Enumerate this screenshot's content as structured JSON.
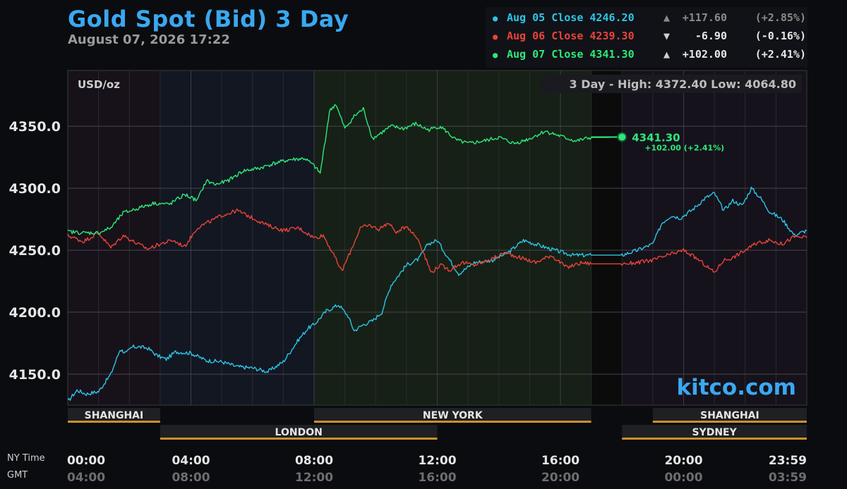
{
  "header": {
    "title": "Gold Spot (Bid) 3 Day",
    "timestamp": "August 07, 2026 17:22"
  },
  "closes": [
    {
      "label": "Aug 05 Close",
      "price": "4246.20",
      "arrow": "▲",
      "change": "+117.60",
      "pct": "(+2.85%)",
      "color": "#2ec4e6"
    },
    {
      "label": "Aug 06 Close",
      "price": "4239.30",
      "arrow": "▼",
      "change": "-6.90",
      "pct": "(-0.16%)",
      "color": "#e8433a"
    },
    {
      "label": "Aug 07 Close",
      "price": "4341.30",
      "arrow": "▲",
      "change": "+102.00",
      "pct": "(+2.41%)",
      "color": "#2ee87a"
    }
  ],
  "chart_labels": {
    "unit": "USD/oz",
    "range_text": "3 Day - High: 4372.40  Low: 4064.80",
    "watermark": "kitco.com",
    "current_price": "4341.30",
    "current_change": "+102.00 (+2.41%)",
    "ny_time_label": "NY Time",
    "gmt_label": "GMT"
  },
  "colors": {
    "aug05": "#2ec4e6",
    "aug06": "#e8433a",
    "aug07": "#2ee87a",
    "brand": "#3aa8f0",
    "session_bar": "#c8922a"
  },
  "sessions": [
    {
      "name": "SHANGHAI",
      "start": 0,
      "end": 3
    },
    {
      "name": "LONDON",
      "start": 3,
      "end": 12
    },
    {
      "name": "NEW YORK",
      "start": 8,
      "end": 17
    },
    {
      "name": "SHANGHAI",
      "start": 19,
      "end": 24
    },
    {
      "name": "SYDNEY",
      "start": 18,
      "end": 24
    }
  ],
  "chart_data": {
    "type": "line",
    "x_unit": "hours (NY time)",
    "xlim": [
      0,
      24
    ],
    "ylim": [
      4125,
      4395
    ],
    "yticks": [
      4150.0,
      4200.0,
      4250.0,
      4300.0,
      4350.0
    ],
    "ytick_labels": [
      "4150.0",
      "4200.0",
      "4250.0",
      "4300.0",
      "4350.0"
    ],
    "xtick_labels_ny": [
      "00:00",
      "04:00",
      "08:00",
      "12:00",
      "16:00",
      "20:00",
      "23:59"
    ],
    "xtick_labels_gmt": [
      "04:00",
      "08:00",
      "12:00",
      "16:00",
      "20:00",
      "00:00",
      "03:59"
    ],
    "grid": true,
    "high": 4372.4,
    "low": 4064.8,
    "series": [
      {
        "name": "Aug 05",
        "x": [
          0,
          0.3,
          0.6,
          1.0,
          1.4,
          1.7,
          1.9,
          2.1,
          2.3,
          2.6,
          2.9,
          3.2,
          3.5,
          4.0,
          4.5,
          5.0,
          5.5,
          6.0,
          6.5,
          7.0,
          7.5,
          7.8,
          8.0,
          8.4,
          8.8,
          9.1,
          9.3,
          9.6,
          9.9,
          10.2,
          10.5,
          11.0,
          11.4,
          11.7,
          12.0,
          12.3,
          12.7,
          13.2,
          13.8,
          14.3,
          14.8,
          15.3,
          15.8,
          16.4,
          17.0,
          17.5,
          18.0,
          18.5,
          19.0,
          19.3,
          19.6,
          19.9,
          20.3,
          20.7,
          21.0,
          21.3,
          21.6,
          21.9,
          22.2,
          22.5,
          22.8,
          23.2,
          23.6,
          24.0
        ],
        "values": [
          4128,
          4137,
          4134,
          4136,
          4150,
          4170,
          4167,
          4172,
          4172,
          4171,
          4165,
          4162,
          4168,
          4167,
          4161,
          4160,
          4156,
          4155,
          4152,
          4160,
          4178,
          4187,
          4190,
          4201,
          4206,
          4197,
          4185,
          4190,
          4193,
          4200,
          4222,
          4238,
          4243,
          4255,
          4258,
          4246,
          4231,
          4240,
          4242,
          4248,
          4258,
          4254,
          4250,
          4246,
          4246,
          4246,
          4246,
          4250,
          4255,
          4272,
          4278,
          4276,
          4283,
          4292,
          4296,
          4282,
          4290,
          4286,
          4300,
          4292,
          4281,
          4275,
          4262,
          4266
        ]
      },
      {
        "name": "Aug 06",
        "x": [
          0,
          0.5,
          1.0,
          1.4,
          1.8,
          2.2,
          2.6,
          3.0,
          3.4,
          3.8,
          4.2,
          4.6,
          5.0,
          5.5,
          6.0,
          6.5,
          7.0,
          7.5,
          8.0,
          8.3,
          8.6,
          8.9,
          9.2,
          9.5,
          9.8,
          10.1,
          10.4,
          10.7,
          11.0,
          11.4,
          11.8,
          12.1,
          12.4,
          12.8,
          13.2,
          13.7,
          14.2,
          14.7,
          15.2,
          15.7,
          16.2,
          16.7,
          17.0,
          17.5,
          18.0,
          18.5,
          19.0,
          19.5,
          20.0,
          20.5,
          21.0,
          21.3,
          21.6,
          22.0,
          22.4,
          22.8,
          23.2,
          23.6,
          24.0
        ],
        "values": [
          4262,
          4257,
          4264,
          4252,
          4262,
          4256,
          4251,
          4255,
          4258,
          4253,
          4268,
          4273,
          4278,
          4282,
          4276,
          4270,
          4266,
          4268,
          4260,
          4262,
          4248,
          4233,
          4250,
          4268,
          4270,
          4267,
          4272,
          4264,
          4270,
          4258,
          4232,
          4238,
          4234,
          4240,
          4238,
          4242,
          4248,
          4244,
          4240,
          4246,
          4236,
          4240,
          4239,
          4239,
          4239,
          4240,
          4242,
          4246,
          4250,
          4242,
          4232,
          4242,
          4244,
          4250,
          4256,
          4258,
          4255,
          4261,
          4260
        ]
      },
      {
        "name": "Aug 07",
        "x": [
          0,
          0.5,
          1.0,
          1.4,
          1.8,
          2.3,
          2.8,
          3.3,
          3.8,
          4.2,
          4.5,
          4.8,
          5.2,
          5.7,
          6.2,
          6.7,
          7.2,
          7.7,
          8.0,
          8.2,
          8.4,
          8.5,
          8.7,
          9.0,
          9.3,
          9.6,
          9.9,
          10.2,
          10.5,
          10.9,
          11.3,
          11.7,
          12.1,
          12.6,
          13.0,
          13.5,
          14.0,
          14.5,
          15.0,
          15.5,
          16.0,
          16.5,
          17.0,
          17.5,
          18.0
        ],
        "values": [
          4265,
          4264,
          4264,
          4268,
          4280,
          4284,
          4288,
          4287,
          4295,
          4290,
          4306,
          4303,
          4306,
          4314,
          4316,
          4320,
          4323,
          4324,
          4318,
          4312,
          4345,
          4362,
          4368,
          4348,
          4358,
          4364,
          4340,
          4345,
          4350,
          4348,
          4352,
          4347,
          4350,
          4339,
          4336,
          4338,
          4341,
          4336,
          4340,
          4346,
          4342,
          4338,
          4341,
          4341,
          4341.3
        ]
      }
    ]
  }
}
